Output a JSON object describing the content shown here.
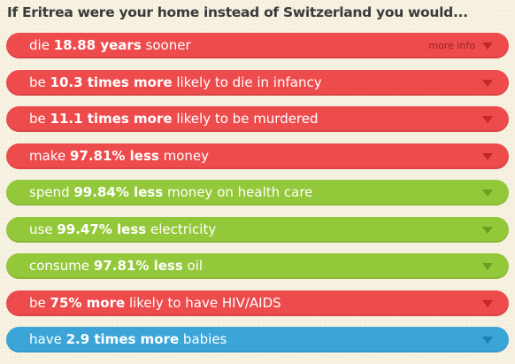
{
  "heading": "If Eritrea were your home instead of Switzerland you would...",
  "more_info": "more info",
  "rows": [
    {
      "pre": "die ",
      "bold": "18.88 years",
      "post": " sooner",
      "color": "red"
    },
    {
      "pre": "be ",
      "bold": "10.3 times more",
      "post": " likely to die in infancy",
      "color": "red"
    },
    {
      "pre": "be ",
      "bold": "11.1 times more",
      "post": " likely to be murdered",
      "color": "red"
    },
    {
      "pre": "make ",
      "bold": "97.81% less",
      "post": " money",
      "color": "red"
    },
    {
      "pre": "spend ",
      "bold": "99.84% less",
      "post": " money on health care",
      "color": "green"
    },
    {
      "pre": "use ",
      "bold": "99.47% less",
      "post": " electricity",
      "color": "green"
    },
    {
      "pre": "consume ",
      "bold": "97.81% less",
      "post": " oil",
      "color": "green"
    },
    {
      "pre": "be ",
      "bold": "75% more",
      "post": " likely to have HIV/AIDS",
      "color": "red"
    },
    {
      "pre": "have ",
      "bold": "2.9 times more",
      "post": " babies",
      "color": "blue"
    }
  ],
  "colors": {
    "red": "#ee4b4d",
    "green": "#94c83b",
    "blue": "#3ba5d8"
  }
}
